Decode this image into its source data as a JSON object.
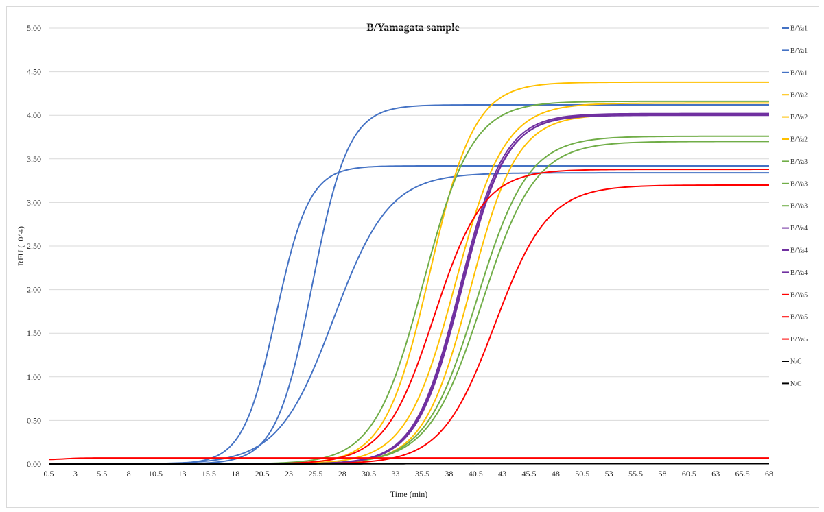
{
  "chart_data": {
    "type": "line",
    "title": "B/Yamagata sample",
    "xlabel": "Time (min)",
    "ylabel": "RFU (10^4)",
    "ylim": [
      0,
      5
    ],
    "xlim": [
      0.5,
      68
    ],
    "grid": true,
    "legend_position": "right",
    "x_tick_labels": [
      "0.5",
      "3",
      "5.5",
      "8",
      "10.5",
      "13",
      "15.5",
      "18",
      "20.5",
      "23",
      "25.5",
      "28",
      "30.5",
      "33",
      "35.5",
      "38",
      "40.5",
      "43",
      "45.5",
      "48",
      "50.5",
      "53",
      "55.5",
      "58",
      "60.5",
      "63",
      "65.5",
      "68"
    ],
    "y_tick_labels": [
      "0.00",
      "0.50",
      "1.00",
      "1.50",
      "2.00",
      "2.50",
      "3.00",
      "3.50",
      "4.00",
      "4.50",
      "5.00"
    ],
    "series": [
      {
        "name": "B/Ya1",
        "color": "#4472C4",
        "base": 0.0,
        "plateau": 4.12,
        "midpoint": 25.2,
        "slope": 1.7
      },
      {
        "name": "B/Ya1",
        "color": "#4472C4",
        "base": 0.0,
        "plateau": 3.42,
        "midpoint": 21.8,
        "slope": 1.55
      },
      {
        "name": "B/Ya1",
        "color": "#4472C4",
        "base": 0.0,
        "plateau": 3.34,
        "midpoint": 27.2,
        "slope": 2.6
      },
      {
        "name": "B/Ya2",
        "color": "#FFC000",
        "base": 0.0,
        "plateau": 4.38,
        "midpoint": 36.2,
        "slope": 2.1
      },
      {
        "name": "B/Ya2",
        "color": "#FFC000",
        "base": 0.0,
        "plateau": 4.14,
        "midpoint": 38.6,
        "slope": 2.3
      },
      {
        "name": "B/Ya2",
        "color": "#FFC000",
        "base": 0.0,
        "plateau": 4.01,
        "midpoint": 40.0,
        "slope": 2.2
      },
      {
        "name": "B/Ya3",
        "color": "#70AD47",
        "base": 0.0,
        "plateau": 4.16,
        "midpoint": 35.6,
        "slope": 2.3
      },
      {
        "name": "B/Ya3",
        "color": "#70AD47",
        "base": 0.0,
        "plateau": 3.76,
        "midpoint": 40.6,
        "slope": 2.4
      },
      {
        "name": "B/Ya3",
        "color": "#70AD47",
        "base": 0.0,
        "plateau": 3.7,
        "midpoint": 41.1,
        "slope": 2.5
      },
      {
        "name": "B/Ya4",
        "color": "#7030A0",
        "base": 0.0,
        "plateau": 4.02,
        "midpoint": 39.0,
        "slope": 2.1
      },
      {
        "name": "B/Ya4",
        "color": "#7030A0",
        "base": 0.0,
        "plateau": 4.0,
        "midpoint": 39.1,
        "slope": 2.1
      },
      {
        "name": "B/Ya4",
        "color": "#7030A0",
        "base": 0.0,
        "plateau": 4.01,
        "midpoint": 39.2,
        "slope": 2.1
      },
      {
        "name": "B/Ya5",
        "color": "#FF0000",
        "base": 0.0,
        "plateau": 3.38,
        "midpoint": 36.6,
        "slope": 2.3
      },
      {
        "name": "B/Ya5",
        "color": "#FF0000",
        "base": 0.0,
        "plateau": 3.2,
        "midpoint": 42.3,
        "slope": 2.5
      },
      {
        "name": "B/Ya5",
        "color": "#FF0000",
        "base": 0.05,
        "plateau": 0.07,
        "midpoint": 2.0,
        "slope": 0.8
      },
      {
        "name": "N/C",
        "color": "#000000",
        "base": 0.0,
        "plateau": 0.005,
        "midpoint": 30,
        "slope": 5
      },
      {
        "name": "N/C",
        "color": "#000000",
        "base": 0.0,
        "plateau": 0.005,
        "midpoint": 30,
        "slope": 5
      }
    ]
  }
}
